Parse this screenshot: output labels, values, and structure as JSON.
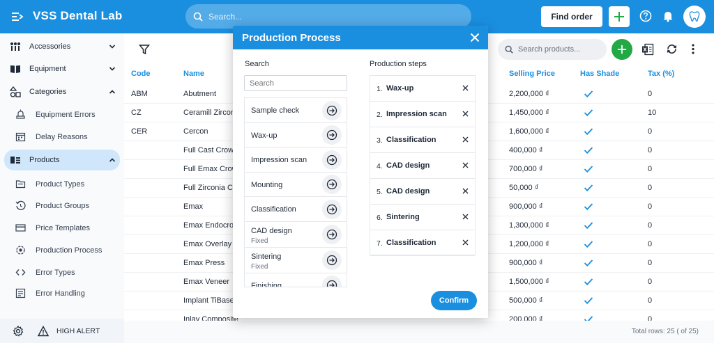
{
  "app": {
    "title": "VSS Dental Lab",
    "search_placeholder": "Search...",
    "find_order_label": "Find order"
  },
  "sidebar": {
    "items": [
      {
        "label": "Accessories",
        "icon": "accessories-icon",
        "expanded": false
      },
      {
        "label": "Equipment",
        "icon": "equipment-icon",
        "expanded": false
      },
      {
        "label": "Categories",
        "icon": "categories-icon",
        "expanded": true
      }
    ],
    "category_subitems": [
      {
        "label": "Equipment Errors",
        "icon": "bug-icon"
      },
      {
        "label": "Delay Reasons",
        "icon": "calendar-icon"
      }
    ],
    "products": {
      "label": "Products",
      "icon": "products-icon",
      "expanded": true
    },
    "product_subitems": [
      {
        "label": "Product Types",
        "icon": "folder-icon"
      },
      {
        "label": "Product Groups",
        "icon": "history-icon"
      },
      {
        "label": "Price Templates",
        "icon": "card-icon"
      },
      {
        "label": "Production Process",
        "icon": "target-icon"
      },
      {
        "label": "Error Types",
        "icon": "code-icon"
      },
      {
        "label": "Error Handling",
        "icon": "edit-list-icon"
      }
    ],
    "footer_alert_label": "HIGH ALERT"
  },
  "toolbar": {
    "search_placeholder": "Search products..."
  },
  "table": {
    "headers": {
      "code": "Code",
      "name": "Name",
      "selling_price": "Selling Price",
      "has_shade": "Has Shade",
      "tax": "Tax (%)"
    },
    "rows": [
      {
        "code": "ABM",
        "name": "Abutment",
        "price": "2,200,000 ₫",
        "shade": true,
        "tax": "0"
      },
      {
        "code": "CZ",
        "name": "Ceramill Zircon",
        "price": "1,450,000 ₫",
        "shade": true,
        "tax": "10"
      },
      {
        "code": "CER",
        "name": "Cercon",
        "price": "1,600,000 ₫",
        "shade": true,
        "tax": "0"
      },
      {
        "code": "",
        "name": "Full Cast Crow",
        "price": "400,000 ₫",
        "shade": true,
        "tax": "0"
      },
      {
        "code": "",
        "name": "Full Emax Crow",
        "price": "700,000 ₫",
        "shade": true,
        "tax": "0"
      },
      {
        "code": "",
        "name": "Full Zirconia Cr",
        "price": "50,000 ₫",
        "shade": true,
        "tax": "0"
      },
      {
        "code": "",
        "name": "Emax",
        "price": "900,000 ₫",
        "shade": true,
        "tax": "0"
      },
      {
        "code": "",
        "name": "Emax Endocrow",
        "price": "1,300,000 ₫",
        "shade": true,
        "tax": "0"
      },
      {
        "code": "",
        "name": "Emax Overlay",
        "price": "1,200,000 ₫",
        "shade": true,
        "tax": "0"
      },
      {
        "code": "",
        "name": "Emax Press",
        "price": "900,000 ₫",
        "shade": true,
        "tax": "0"
      },
      {
        "code": "",
        "name": "Emax Veneer",
        "price": "1,500,000 ₫",
        "shade": true,
        "tax": "0"
      },
      {
        "code": "",
        "name": "Implant TiBase",
        "price": "500,000 ₫",
        "shade": true,
        "tax": "0"
      },
      {
        "code": "",
        "name": "Inlay Composite",
        "price": "200,000 ₫",
        "shade": true,
        "tax": "0"
      }
    ],
    "total_rows": "Total rows: 25 ( of 25)"
  },
  "modal": {
    "title": "Production Process",
    "search_label": "Search",
    "search_placeholder": "Search",
    "steps_label": "Production steps",
    "available_steps": [
      {
        "name": "Sample check",
        "sub": ""
      },
      {
        "name": "Wax-up",
        "sub": ""
      },
      {
        "name": "Impression scan",
        "sub": ""
      },
      {
        "name": "Mounting",
        "sub": ""
      },
      {
        "name": "Classification",
        "sub": ""
      },
      {
        "name": "CAD design",
        "sub": "Fixed"
      },
      {
        "name": "Sintering",
        "sub": "Fixed"
      },
      {
        "name": "Finishing",
        "sub": ""
      }
    ],
    "selected_steps": [
      {
        "no": "1.",
        "name": "Wax-up"
      },
      {
        "no": "2.",
        "name": "Impression scan"
      },
      {
        "no": "3.",
        "name": "Classification"
      },
      {
        "no": "4.",
        "name": "CAD design"
      },
      {
        "no": "5.",
        "name": "CAD design"
      },
      {
        "no": "6.",
        "name": "Sintering"
      },
      {
        "no": "7.",
        "name": "Classification"
      }
    ],
    "confirm_label": "Confirm"
  },
  "colors": {
    "primary": "#1a8fe0",
    "success": "#22a845",
    "active_bg": "#cfe6fb"
  }
}
